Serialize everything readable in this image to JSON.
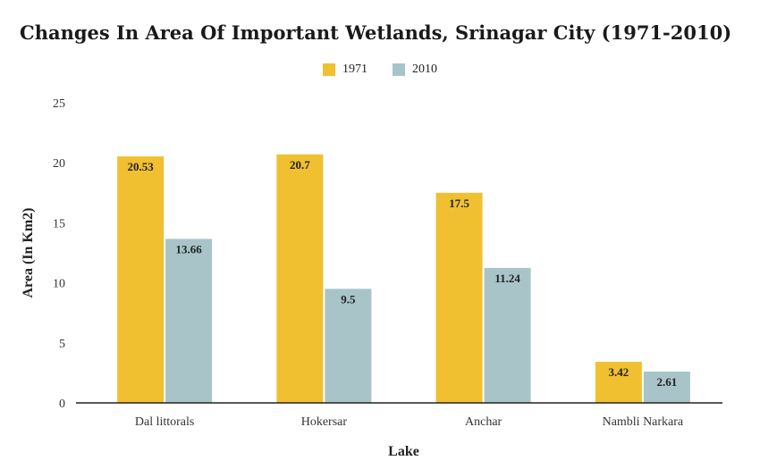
{
  "chart_data": {
    "type": "bar",
    "title": "Changes In Area Of Important Wetlands, Srinagar City (1971-2010)",
    "xlabel": "Lake",
    "ylabel": "Area (In Km2)",
    "categories": [
      "Dal littorals",
      "Hokersar",
      "Anchar",
      "Nambli Narkara"
    ],
    "series": [
      {
        "name": "1971",
        "color": "#f0c030",
        "values": [
          20.53,
          20.7,
          17.5,
          3.42
        ],
        "labels": [
          "20.53",
          "20.7",
          "17.5",
          "3.42"
        ]
      },
      {
        "name": "2010",
        "color": "#a8c4c8",
        "values": [
          13.66,
          9.5,
          11.24,
          2.61
        ],
        "labels": [
          "13.66",
          "9.5",
          "11.24",
          "2.61"
        ]
      }
    ],
    "ylim": [
      0,
      25
    ],
    "yticks": [
      "0",
      "5",
      "10",
      "15",
      "20",
      "25"
    ],
    "grid": false,
    "legend_position": "top"
  }
}
